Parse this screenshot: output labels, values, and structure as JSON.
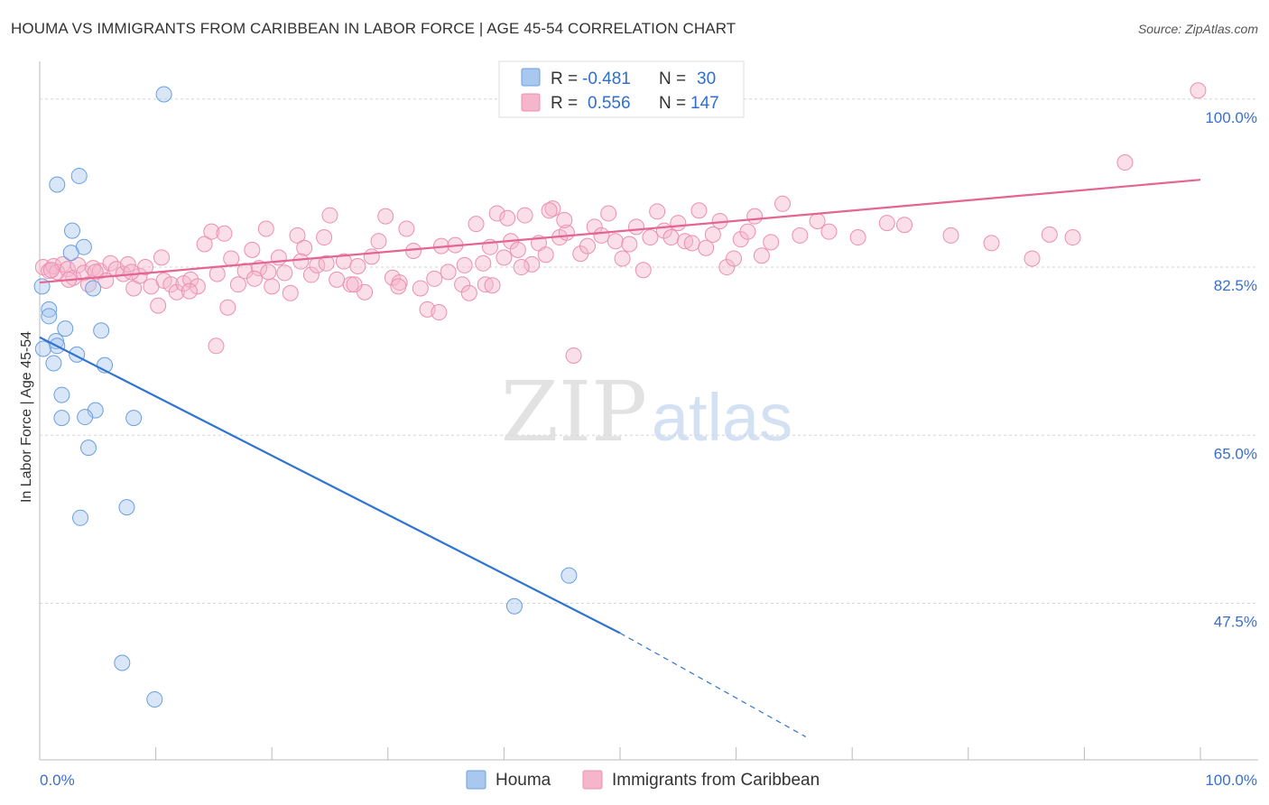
{
  "header": {
    "title": "HOUMA VS IMMIGRANTS FROM CARIBBEAN IN LABOR FORCE | AGE 45-54 CORRELATION CHART",
    "source": "Source: ZipAtlas.com"
  },
  "watermark": {
    "zip": "ZIP",
    "atlas": "atlas"
  },
  "stats": [
    {
      "r_label": "R =",
      "r_value": "-0.481",
      "n_label": "N =",
      "n_value": "30",
      "color": "#a9c8ef"
    },
    {
      "r_label": "R =",
      "r_value": "0.556",
      "n_label": "N =",
      "n_value": "147",
      "color": "#f5b6cb"
    }
  ],
  "chart_data": {
    "type": "scatter",
    "title": "HOUMA VS IMMIGRANTS FROM CARIBBEAN IN LABOR FORCE | AGE 45-54 CORRELATION CHART",
    "xlabel": "",
    "ylabel": "In Labor Force | Age 45-54",
    "xlim": [
      0,
      100
    ],
    "ylim": [
      31.2,
      102.8
    ],
    "x_tick_labels": [
      "0.0%",
      "100.0%"
    ],
    "y_ticks": [
      47.5,
      65.0,
      82.5,
      100.0
    ],
    "y_tick_labels": [
      "47.5%",
      "65.0%",
      "82.5%",
      "100.0%"
    ],
    "grid": true,
    "legend_position": "bottom-center",
    "series": [
      {
        "name": "Houma",
        "color": "#a9c8ef",
        "stroke": "#6a9fe0",
        "line_color": "#2f74d0",
        "trend": {
          "x0": 0.0,
          "y0": 75.2,
          "x1": 50.0,
          "y1": 44.4,
          "dash_to_x": 66.0,
          "dash_to_y": 33.6
        },
        "points": [
          [
            10.7,
            100.5
          ],
          [
            3.4,
            92.0
          ],
          [
            1.5,
            91.1
          ],
          [
            2.8,
            86.3
          ],
          [
            3.8,
            84.6
          ],
          [
            2.7,
            84.0
          ],
          [
            0.2,
            80.5
          ],
          [
            4.6,
            80.3
          ],
          [
            0.8,
            78.1
          ],
          [
            0.8,
            77.4
          ],
          [
            2.2,
            76.1
          ],
          [
            5.3,
            75.9
          ],
          [
            1.4,
            74.8
          ],
          [
            1.5,
            74.3
          ],
          [
            0.3,
            74.0
          ],
          [
            3.2,
            73.4
          ],
          [
            1.2,
            72.5
          ],
          [
            5.6,
            72.3
          ],
          [
            1.9,
            69.2
          ],
          [
            4.8,
            67.6
          ],
          [
            1.9,
            66.8
          ],
          [
            3.9,
            66.9
          ],
          [
            8.1,
            66.8
          ],
          [
            4.2,
            63.7
          ],
          [
            7.5,
            57.5
          ],
          [
            3.5,
            56.4
          ],
          [
            45.6,
            50.4
          ],
          [
            40.9,
            47.2
          ],
          [
            7.1,
            41.3
          ],
          [
            9.9,
            37.5
          ]
        ]
      },
      {
        "name": "Immigrants from Caribbean",
        "color": "#f5b6cb",
        "stroke": "#ec8fb0",
        "line_color": "#e46492",
        "trend": {
          "x0": 0.0,
          "y0": 80.9,
          "x1": 100.0,
          "y1": 91.6
        },
        "points": [
          [
            99.8,
            100.9
          ],
          [
            93.5,
            93.4
          ],
          [
            0.3,
            82.5
          ],
          [
            0.8,
            82.1
          ],
          [
            1.2,
            82.6
          ],
          [
            1.5,
            82.0
          ],
          [
            2.0,
            82.8
          ],
          [
            2.4,
            82.3
          ],
          [
            2.9,
            81.4
          ],
          [
            3.3,
            82.7
          ],
          [
            3.8,
            81.9
          ],
          [
            4.2,
            80.7
          ],
          [
            4.6,
            82.4
          ],
          [
            5.2,
            82.1
          ],
          [
            5.7,
            81.1
          ],
          [
            6.1,
            82.9
          ],
          [
            6.6,
            82.3
          ],
          [
            7.2,
            81.8
          ],
          [
            7.6,
            82.8
          ],
          [
            8.1,
            80.3
          ],
          [
            8.6,
            81.6
          ],
          [
            9.1,
            82.5
          ],
          [
            9.6,
            80.5
          ],
          [
            10.2,
            78.5
          ],
          [
            10.7,
            81.1
          ],
          [
            11.3,
            80.7
          ],
          [
            11.8,
            79.9
          ],
          [
            12.4,
            80.8
          ],
          [
            13.0,
            81.2
          ],
          [
            13.6,
            80.5
          ],
          [
            14.2,
            84.9
          ],
          [
            14.8,
            86.2
          ],
          [
            15.3,
            81.8
          ],
          [
            15.9,
            86.0
          ],
          [
            16.5,
            83.4
          ],
          [
            17.1,
            80.7
          ],
          [
            17.7,
            82.1
          ],
          [
            18.3,
            84.3
          ],
          [
            18.9,
            82.4
          ],
          [
            19.5,
            86.5
          ],
          [
            20.0,
            80.5
          ],
          [
            20.6,
            83.5
          ],
          [
            21.1,
            81.9
          ],
          [
            21.6,
            79.8
          ],
          [
            22.2,
            85.8
          ],
          [
            22.8,
            84.5
          ],
          [
            23.4,
            81.7
          ],
          [
            23.9,
            82.7
          ],
          [
            24.5,
            85.6
          ],
          [
            25.0,
            87.9
          ],
          [
            25.6,
            81.2
          ],
          [
            26.2,
            83.1
          ],
          [
            26.8,
            80.7
          ],
          [
            27.4,
            82.6
          ],
          [
            28.0,
            79.9
          ],
          [
            28.6,
            83.6
          ],
          [
            29.2,
            85.2
          ],
          [
            29.8,
            87.8
          ],
          [
            30.4,
            81.4
          ],
          [
            31.0,
            80.9
          ],
          [
            31.6,
            86.5
          ],
          [
            32.2,
            84.2
          ],
          [
            32.8,
            80.3
          ],
          [
            33.4,
            78.1
          ],
          [
            34.0,
            81.3
          ],
          [
            34.6,
            84.7
          ],
          [
            35.2,
            82.0
          ],
          [
            35.8,
            84.8
          ],
          [
            36.4,
            80.7
          ],
          [
            37.0,
            79.8
          ],
          [
            37.6,
            87.0
          ],
          [
            38.2,
            82.9
          ],
          [
            38.8,
            84.6
          ],
          [
            39.4,
            88.1
          ],
          [
            40.0,
            83.5
          ],
          [
            40.6,
            85.2
          ],
          [
            41.2,
            84.3
          ],
          [
            41.8,
            87.9
          ],
          [
            42.4,
            82.8
          ],
          [
            43.0,
            85.0
          ],
          [
            43.6,
            83.8
          ],
          [
            44.2,
            88.6
          ],
          [
            44.8,
            85.6
          ],
          [
            45.4,
            86.1
          ],
          [
            46.0,
            73.3
          ],
          [
            46.6,
            83.9
          ],
          [
            47.2,
            84.7
          ],
          [
            47.8,
            86.7
          ],
          [
            48.4,
            85.8
          ],
          [
            49.0,
            88.1
          ],
          [
            49.6,
            85.2
          ],
          [
            50.2,
            83.4
          ],
          [
            50.8,
            84.9
          ],
          [
            51.4,
            86.7
          ],
          [
            52.0,
            82.2
          ],
          [
            52.6,
            85.6
          ],
          [
            53.2,
            88.3
          ],
          [
            53.8,
            86.3
          ],
          [
            54.4,
            85.6
          ],
          [
            55.0,
            87.1
          ],
          [
            55.6,
            85.2
          ],
          [
            56.2,
            85.0
          ],
          [
            56.8,
            88.4
          ],
          [
            57.4,
            84.5
          ],
          [
            58.0,
            85.9
          ],
          [
            58.6,
            87.3
          ],
          [
            59.2,
            82.5
          ],
          [
            59.8,
            83.4
          ],
          [
            60.4,
            85.4
          ],
          [
            61.0,
            86.2
          ],
          [
            61.6,
            87.8
          ],
          [
            62.2,
            83.7
          ],
          [
            63.0,
            85.1
          ],
          [
            64.0,
            89.1
          ],
          [
            65.5,
            85.8
          ],
          [
            67.0,
            87.3
          ],
          [
            68.0,
            86.2
          ],
          [
            70.5,
            85.6
          ],
          [
            73.0,
            87.1
          ],
          [
            74.5,
            86.9
          ],
          [
            78.5,
            85.8
          ],
          [
            82.0,
            85.0
          ],
          [
            85.5,
            83.4
          ],
          [
            87.0,
            85.9
          ],
          [
            89.0,
            85.6
          ],
          [
            1.0,
            82.2
          ],
          [
            2.5,
            81.2
          ],
          [
            4.8,
            82.0
          ],
          [
            7.9,
            82.0
          ],
          [
            10.5,
            83.5
          ],
          [
            12.9,
            80.0
          ],
          [
            15.2,
            74.3
          ],
          [
            16.2,
            78.3
          ],
          [
            18.5,
            81.3
          ],
          [
            19.7,
            82.0
          ],
          [
            22.5,
            83.1
          ],
          [
            24.7,
            82.9
          ],
          [
            27.1,
            80.7
          ],
          [
            30.9,
            80.5
          ],
          [
            34.4,
            77.8
          ],
          [
            36.6,
            82.7
          ],
          [
            38.4,
            80.7
          ],
          [
            39.0,
            80.6
          ],
          [
            40.3,
            87.6
          ],
          [
            41.5,
            82.5
          ],
          [
            43.9,
            88.4
          ],
          [
            45.2,
            87.4
          ]
        ]
      }
    ]
  },
  "legend": {
    "items": [
      {
        "label": "Houma",
        "color": "#a9c8ef"
      },
      {
        "label": "Immigrants from Caribbean",
        "color": "#f5b6cb"
      }
    ]
  }
}
